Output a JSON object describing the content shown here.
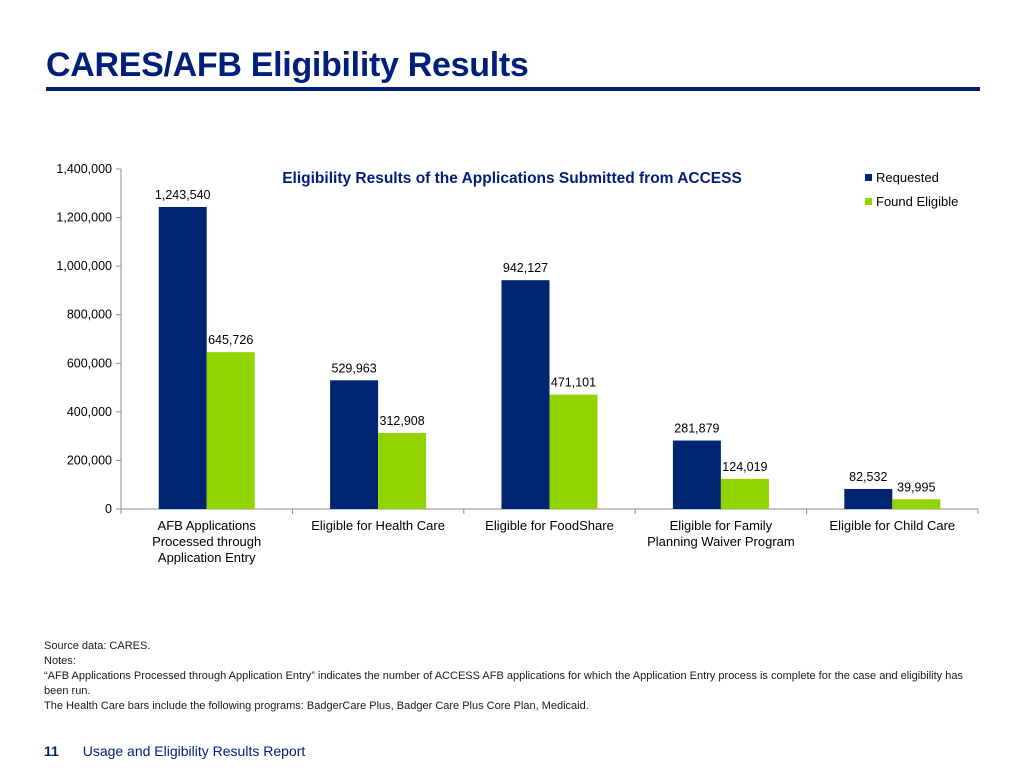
{
  "slide": {
    "title": "CARES/AFB Eligibility Results"
  },
  "chart_data": {
    "type": "bar",
    "title": "Eligibility Results of the Applications Submitted from ACCESS",
    "categories": [
      [
        "AFB Applications",
        "Processed through",
        "Application Entry"
      ],
      [
        "Eligible for Health Care"
      ],
      [
        "Eligible for FoodShare"
      ],
      [
        "Eligible for Family",
        "Planning Waiver Program"
      ],
      [
        "Eligible for Child Care"
      ]
    ],
    "series": [
      {
        "name": "Requested",
        "color": "#002673",
        "values": [
          1243540,
          529963,
          942127,
          281879,
          82532
        ],
        "labels": [
          "1,243,540",
          "529,963",
          "942,127",
          "281,879",
          "82,532"
        ]
      },
      {
        "name": "Found Eligible",
        "color": "#92d400",
        "values": [
          645726,
          312908,
          471101,
          124019,
          39995
        ],
        "labels": [
          "645,726",
          "312,908",
          "471,101",
          "124,019",
          "39,995"
        ]
      }
    ],
    "ylim": [
      0,
      1400000
    ],
    "yticks": [
      0,
      200000,
      400000,
      600000,
      800000,
      1000000,
      1200000,
      1400000
    ],
    "ytick_labels": [
      "0",
      "200,000",
      "400,000",
      "600,000",
      "800,000",
      "1,000,000",
      "1,200,000",
      "1,400,000"
    ],
    "xlabel": "",
    "ylabel": "",
    "grid": false,
    "legend_position": "top-right"
  },
  "notes": {
    "source": "Source data: CARES.",
    "notes_label": "Notes:",
    "note1": "“AFB Applications Processed through Application Entry” indicates the number of ACCESS AFB applications for which the Application Entry process is complete for the case and eligibility has been run.",
    "note2": "The Health Care bars include the following programs: BadgerCare Plus, Badger Care Plus Core Plan, Medicaid."
  },
  "footer": {
    "page_number": "11",
    "report_title": "Usage and Eligibility Results Report"
  }
}
